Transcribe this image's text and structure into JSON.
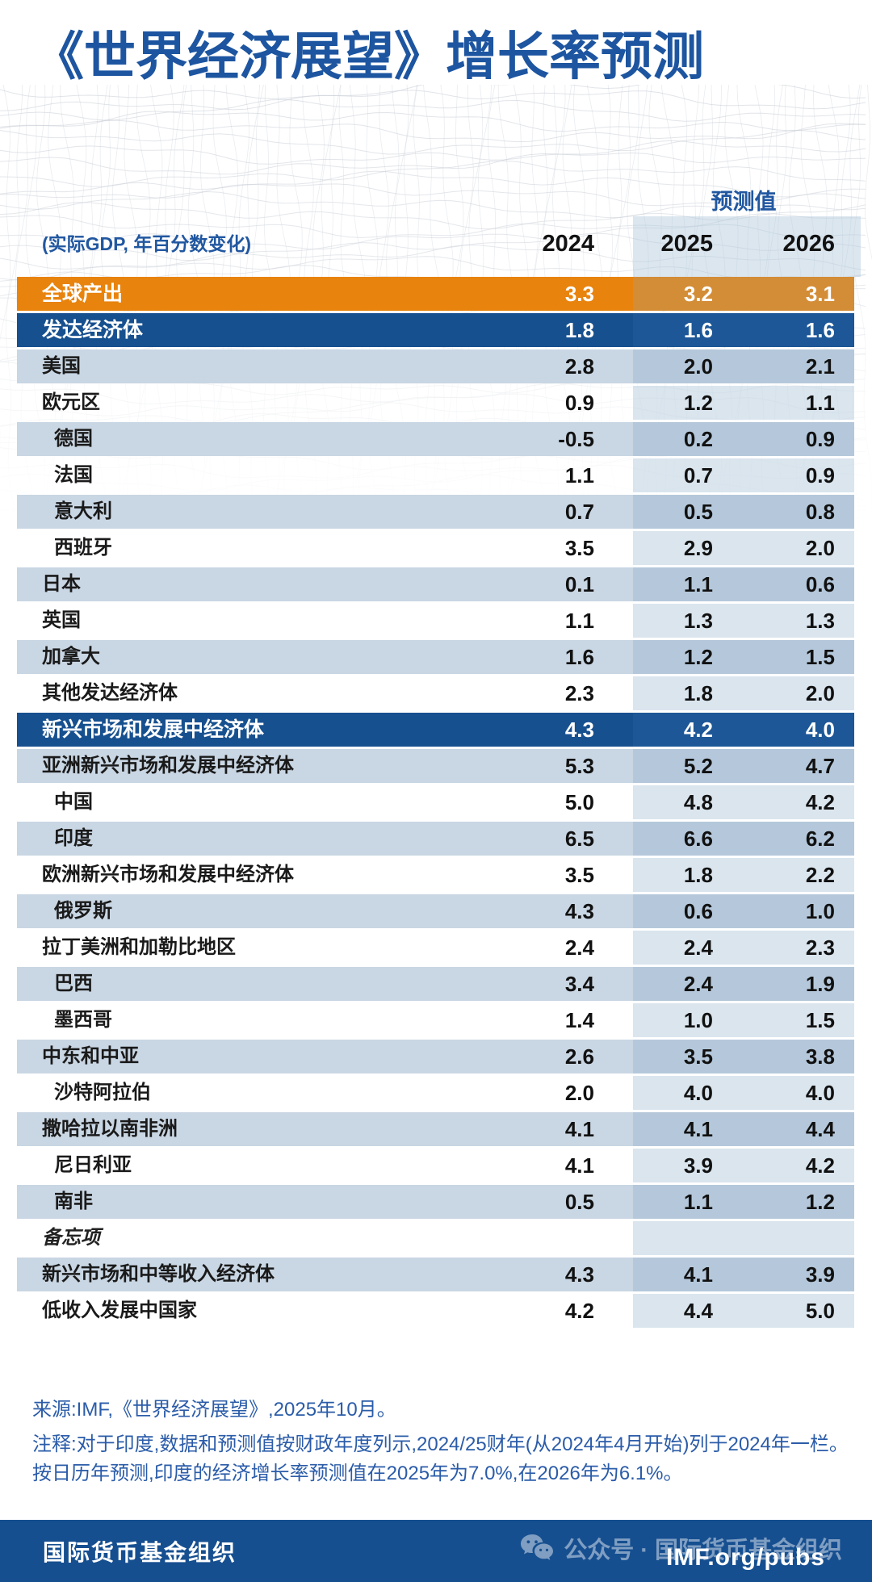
{
  "title": "《世界经济展望》增长率预测",
  "chart_data": {
    "type": "table",
    "title": "《世界经济展望》增长率预测",
    "unit_label": "(实际GDP, 年百分数变化)",
    "forecast_label": "预测值",
    "columns": [
      "2024",
      "2025",
      "2026"
    ],
    "rows": [
      {
        "label": "全球产出",
        "type": "global",
        "indent": false,
        "values": [
          "3.3",
          "3.2",
          "3.1"
        ]
      },
      {
        "label": "发达经济体",
        "type": "group",
        "indent": false,
        "values": [
          "1.8",
          "1.6",
          "1.6"
        ]
      },
      {
        "label": "美国",
        "type": "alt",
        "indent": false,
        "values": [
          "2.8",
          "2.0",
          "2.1"
        ]
      },
      {
        "label": "欧元区",
        "type": "plain",
        "indent": false,
        "values": [
          "0.9",
          "1.2",
          "1.1"
        ]
      },
      {
        "label": "德国",
        "type": "alt",
        "indent": true,
        "values": [
          "-0.5",
          "0.2",
          "0.9"
        ]
      },
      {
        "label": "法国",
        "type": "plain",
        "indent": true,
        "values": [
          "1.1",
          "0.7",
          "0.9"
        ]
      },
      {
        "label": "意大利",
        "type": "alt",
        "indent": true,
        "values": [
          "0.7",
          "0.5",
          "0.8"
        ]
      },
      {
        "label": "西班牙",
        "type": "plain",
        "indent": true,
        "values": [
          "3.5",
          "2.9",
          "2.0"
        ]
      },
      {
        "label": "日本",
        "type": "alt",
        "indent": false,
        "values": [
          "0.1",
          "1.1",
          "0.6"
        ]
      },
      {
        "label": "英国",
        "type": "plain",
        "indent": false,
        "values": [
          "1.1",
          "1.3",
          "1.3"
        ]
      },
      {
        "label": "加拿大",
        "type": "alt",
        "indent": false,
        "values": [
          "1.6",
          "1.2",
          "1.5"
        ]
      },
      {
        "label": "其他发达经济体",
        "type": "plain",
        "indent": false,
        "values": [
          "2.3",
          "1.8",
          "2.0"
        ]
      },
      {
        "label": "新兴市场和发展中经济体",
        "type": "group",
        "indent": false,
        "values": [
          "4.3",
          "4.2",
          "4.0"
        ]
      },
      {
        "label": "亚洲新兴市场和发展中经济体",
        "type": "alt",
        "indent": false,
        "values": [
          "5.3",
          "5.2",
          "4.7"
        ]
      },
      {
        "label": "中国",
        "type": "plain",
        "indent": true,
        "values": [
          "5.0",
          "4.8",
          "4.2"
        ]
      },
      {
        "label": "印度",
        "type": "alt",
        "indent": true,
        "values": [
          "6.5",
          "6.6",
          "6.2"
        ]
      },
      {
        "label": "欧洲新兴市场和发展中经济体",
        "type": "plain",
        "indent": false,
        "values": [
          "3.5",
          "1.8",
          "2.2"
        ]
      },
      {
        "label": "俄罗斯",
        "type": "alt",
        "indent": true,
        "values": [
          "4.3",
          "0.6",
          "1.0"
        ]
      },
      {
        "label": "拉丁美洲和加勒比地区",
        "type": "plain",
        "indent": false,
        "values": [
          "2.4",
          "2.4",
          "2.3"
        ]
      },
      {
        "label": "巴西",
        "type": "alt",
        "indent": true,
        "values": [
          "3.4",
          "2.4",
          "1.9"
        ]
      },
      {
        "label": "墨西哥",
        "type": "plain",
        "indent": true,
        "values": [
          "1.4",
          "1.0",
          "1.5"
        ]
      },
      {
        "label": "中东和中亚",
        "type": "alt",
        "indent": false,
        "values": [
          "2.6",
          "3.5",
          "3.8"
        ]
      },
      {
        "label": "沙特阿拉伯",
        "type": "plain",
        "indent": true,
        "values": [
          "2.0",
          "4.0",
          "4.0"
        ]
      },
      {
        "label": "撒哈拉以南非洲",
        "type": "alt",
        "indent": false,
        "values": [
          "4.1",
          "4.1",
          "4.4"
        ]
      },
      {
        "label": "尼日利亚",
        "type": "plain",
        "indent": true,
        "values": [
          "4.1",
          "3.9",
          "4.2"
        ]
      },
      {
        "label": "南非",
        "type": "alt",
        "indent": true,
        "values": [
          "0.5",
          "1.1",
          "1.2"
        ]
      },
      {
        "label": "备忘项",
        "type": "memo",
        "indent": false,
        "values": [
          "",
          "",
          ""
        ]
      },
      {
        "label": "新兴市场和中等收入经济体",
        "type": "alt",
        "indent": false,
        "values": [
          "4.3",
          "4.1",
          "3.9"
        ]
      },
      {
        "label": "低收入发展中国家",
        "type": "plain",
        "indent": false,
        "values": [
          "4.2",
          "4.4",
          "5.0"
        ]
      }
    ]
  },
  "footnotes": {
    "source": "来源:IMF,《世界经济展望》,2025年10月。",
    "note": "注释:对于印度,数据和预测值按财政年度列示,2024/25财年(从2024年4月开始)列于2024年一栏。按日历年预测,印度的经济增长率预测值在2025年为7.0%,在2026年为6.1%。"
  },
  "footer": {
    "org": "国际货币基金组织",
    "wechat_label": "公众号 · 国际货币基金组织",
    "imf_url": "IMF.org/pubs"
  },
  "colors": {
    "title_blue": "#1d55a0",
    "global_row_orange": "#e8830d",
    "group_row_blue": "#17508f",
    "alt_row_blue": "#c9d6e3",
    "forecast_overlay": "#b5c8db",
    "footer_bar_blue": "#164f90",
    "footnote_blue": "#2b5ca9"
  }
}
